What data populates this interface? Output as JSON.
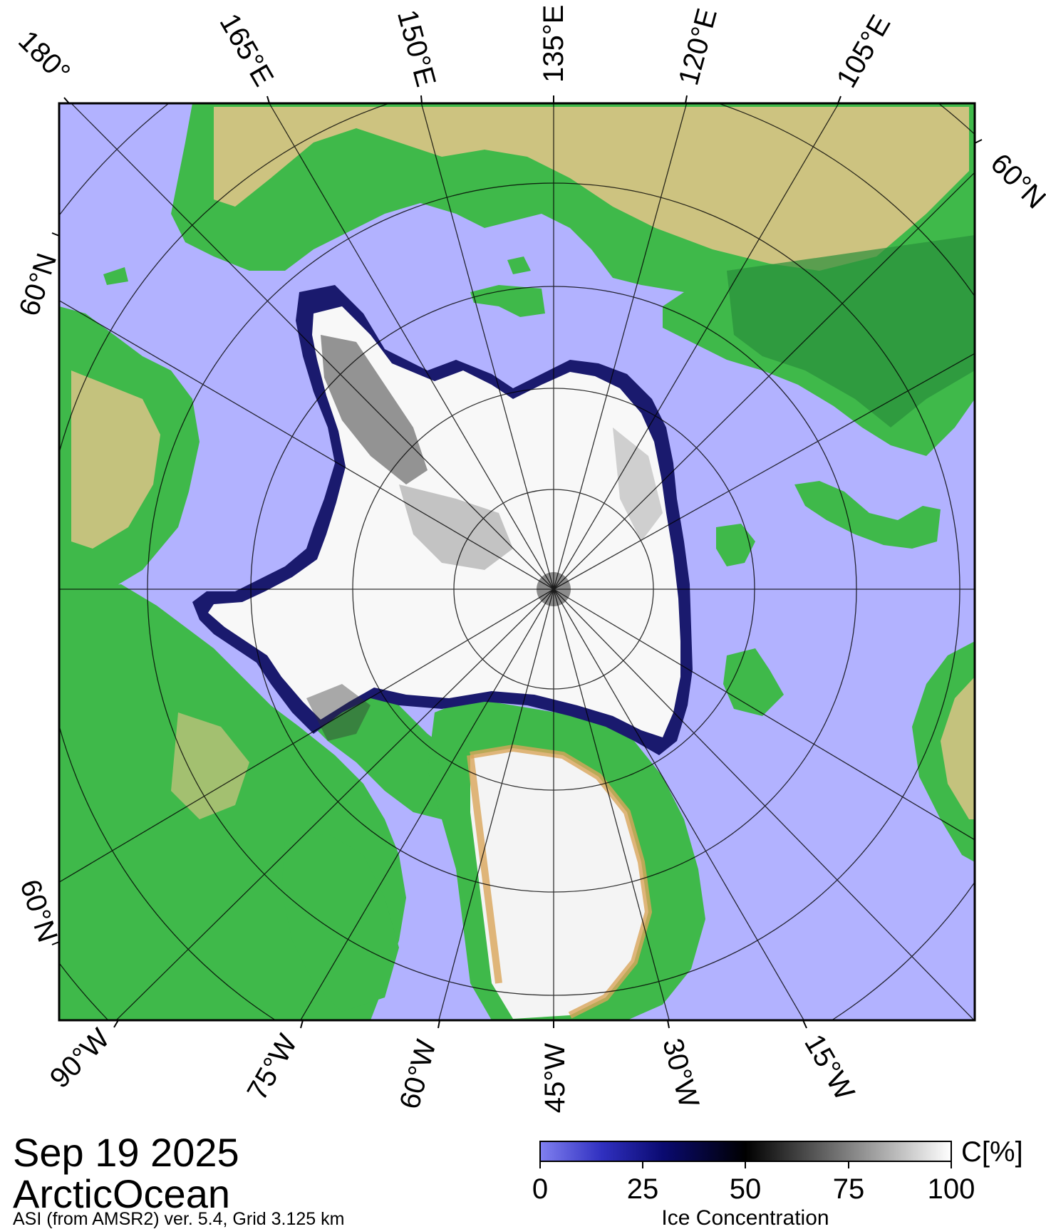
{
  "map": {
    "projection": "north polar stereographic",
    "latitude_circle_label": "60°N",
    "longitude_labels_top": [
      "180°",
      "165°E",
      "150°E",
      "135°E",
      "120°E",
      "105°E"
    ],
    "longitude_labels_bottom": [
      "90°W",
      "75°W",
      "60°W",
      "45°W",
      "30°W",
      "15°W"
    ],
    "colors": {
      "ocean": "#b2b2ff",
      "land_low": "#3fb94a",
      "land_mid": "#7ed07a",
      "land_high": "#e6c48a",
      "ice_full": "#ffffff",
      "ice_low": "#0a0a50",
      "pole_hole": "#8c8c8c"
    }
  },
  "footer": {
    "date": "Sep 19 2025",
    "region": "ArcticOcean",
    "product": "ASI (from AMSR2) ver. 5.4,  Grid 3.125 km"
  },
  "colorbar": {
    "unit": "C[%]",
    "title": "Ice Concentration",
    "ticks": [
      "0",
      "25",
      "50",
      "75",
      "100"
    ],
    "range": [
      0,
      100
    ]
  }
}
